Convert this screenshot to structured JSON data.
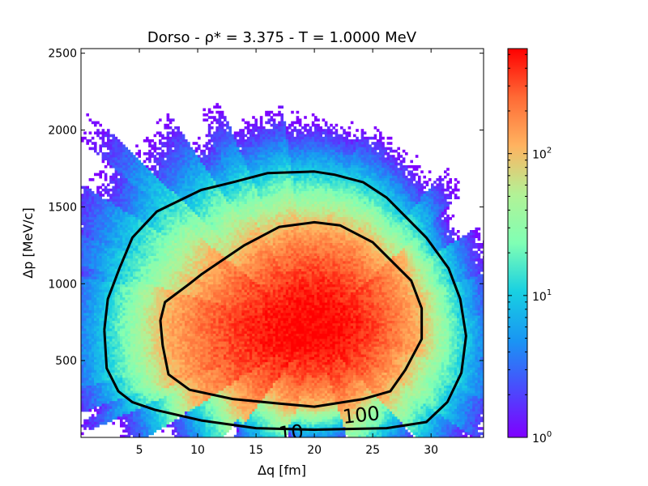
{
  "chart_data": {
    "type": "heatmap",
    "title": "Dorso - ρ* = 3.375 - T = 1.0000 MeV",
    "xlabel": "Δq [fm]",
    "ylabel": "Δp [MeV/c]",
    "xlim": [
      0,
      34.5
    ],
    "ylim": [
      0,
      2530
    ],
    "xticks": [
      "5",
      "10",
      "15",
      "20",
      "25",
      "30"
    ],
    "xtick_values": [
      5,
      10,
      15,
      20,
      25,
      30
    ],
    "yticks": [
      "500",
      "1000",
      "1500",
      "2000",
      "2500"
    ],
    "ytick_values": [
      500,
      1000,
      1500,
      2000,
      2500
    ],
    "colorbar": {
      "scale": "log",
      "range": [
        1,
        550
      ],
      "ticks": [
        {
          "value": 1,
          "base": "10",
          "exp": "0"
        },
        {
          "value": 10,
          "base": "10",
          "exp": "1"
        },
        {
          "value": 100,
          "base": "10",
          "exp": "2"
        }
      ],
      "colormap": "rainbow"
    },
    "density": {
      "peak_x": 20,
      "peak_y": 700,
      "peak_count": 550
    },
    "contours": [
      {
        "level": 100,
        "label": "100",
        "points": [
          [
            7,
            600
          ],
          [
            6.8,
            760
          ],
          [
            7.2,
            880
          ],
          [
            9.3,
            1000
          ],
          [
            10.3,
            1060
          ],
          [
            14,
            1250
          ],
          [
            17,
            1370
          ],
          [
            20,
            1400
          ],
          [
            22.2,
            1380
          ],
          [
            25,
            1270
          ],
          [
            28.3,
            1020
          ],
          [
            29.2,
            840
          ],
          [
            29.2,
            640
          ],
          [
            27.8,
            440
          ],
          [
            26.5,
            300
          ],
          [
            24.2,
            250
          ],
          [
            20,
            200
          ],
          [
            17,
            220
          ],
          [
            13,
            250
          ],
          [
            9.3,
            310
          ],
          [
            7.5,
            410
          ],
          [
            7,
            600
          ]
        ]
      },
      {
        "level": 10,
        "label": "10",
        "points": [
          [
            2,
            700
          ],
          [
            2.3,
            900
          ],
          [
            3.3,
            1100
          ],
          [
            4.4,
            1300
          ],
          [
            6.5,
            1470
          ],
          [
            10.3,
            1610
          ],
          [
            13,
            1660
          ],
          [
            16,
            1720
          ],
          [
            20,
            1730
          ],
          [
            21.7,
            1710
          ],
          [
            24.2,
            1660
          ],
          [
            26.2,
            1560
          ],
          [
            29.6,
            1300
          ],
          [
            31.5,
            1100
          ],
          [
            32.5,
            900
          ],
          [
            33,
            660
          ],
          [
            32.6,
            420
          ],
          [
            31.4,
            230
          ],
          [
            29.6,
            100
          ],
          [
            26.2,
            60
          ],
          [
            20,
            50
          ],
          [
            15,
            60
          ],
          [
            10.3,
            110
          ],
          [
            6.3,
            180
          ],
          [
            4.4,
            230
          ],
          [
            3.2,
            300
          ],
          [
            2.2,
            450
          ],
          [
            2,
            700
          ]
        ]
      }
    ]
  }
}
